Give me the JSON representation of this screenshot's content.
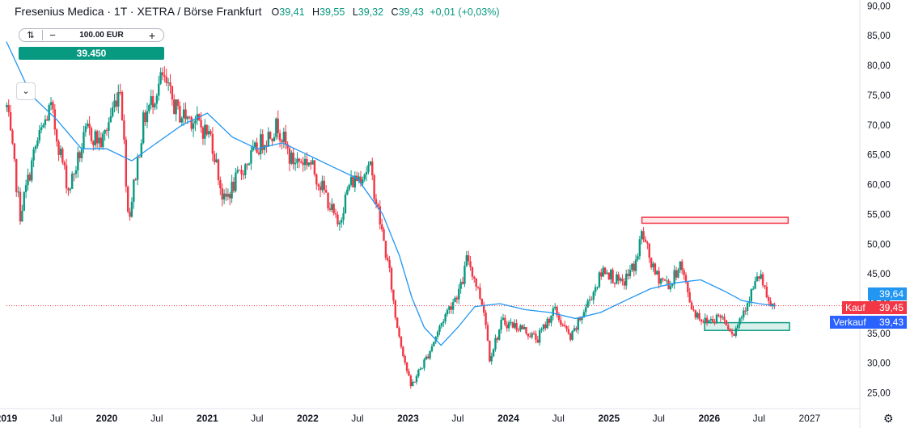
{
  "header": {
    "title": "Fresenius Medica · 1T · XETRA / Börse Frankfurt",
    "o_label": "O",
    "o_value": "39,41",
    "h_label": "H",
    "h_value": "39,55",
    "l_label": "L",
    "l_value": "39,32",
    "c_label": "C",
    "c_value": "39,43",
    "change": "+0,01 (+0,03%)"
  },
  "trade": {
    "swap_icon": "swap-icon",
    "minus": "−",
    "quantity": "100.00 EUR",
    "plus": "+",
    "price": "39.450"
  },
  "collapse_icon": "chevron-down-icon",
  "price_labels": {
    "last": "39,64",
    "kauf_label": "Kauf",
    "kauf_value": "39,45",
    "verkauf_label": "Verkauf",
    "verkauf_value": "39,43"
  },
  "colors": {
    "up": "#089981",
    "down": "#f23645",
    "ma": "#2196f3",
    "kauf": "#f23645",
    "verkauf": "#2962ff",
    "last": "#2196f3",
    "resistance": "#f23645",
    "support": "#089981"
  },
  "chart_data": {
    "type": "candlestick",
    "x_axis_labels": [
      "2019",
      "Jul",
      "2020",
      "Jul",
      "2021",
      "Jul",
      "2022",
      "Jul",
      "2023",
      "Jul",
      "2024",
      "Jul",
      "2025",
      "Jul",
      "2026",
      "Jul",
      "2027"
    ],
    "y_ticks": [
      "25,00",
      "30,00",
      "35,00",
      "40,00",
      "45,00",
      "50,00",
      "55,00",
      "60,00",
      "65,00",
      "70,00",
      "75,00",
      "80,00",
      "85,00",
      "90,00"
    ],
    "ylim": [
      22.5,
      91
    ],
    "xlim": [
      "2019-01-01",
      "2027-06-30"
    ],
    "price_path": [
      [
        "2019-01-02",
        73
      ],
      [
        "2019-02-20",
        55
      ],
      [
        "2019-04-15",
        66
      ],
      [
        "2019-06-10",
        73
      ],
      [
        "2019-08-15",
        59
      ],
      [
        "2019-10-20",
        69
      ],
      [
        "2019-12-15",
        67
      ],
      [
        "2020-02-20",
        77
      ],
      [
        "2020-03-20",
        54
      ],
      [
        "2020-05-15",
        71
      ],
      [
        "2020-07-20",
        78
      ],
      [
        "2020-09-15",
        72
      ],
      [
        "2020-11-10",
        71
      ],
      [
        "2021-01-15",
        68
      ],
      [
        "2021-03-01",
        57
      ],
      [
        "2021-05-15",
        63
      ],
      [
        "2021-07-15",
        67
      ],
      [
        "2021-09-15",
        70
      ],
      [
        "2021-11-01",
        64
      ],
      [
        "2022-01-05",
        64
      ],
      [
        "2022-03-10",
        58
      ],
      [
        "2022-04-20",
        53
      ],
      [
        "2022-06-01",
        60
      ],
      [
        "2022-08-15",
        63
      ],
      [
        "2022-10-10",
        49
      ],
      [
        "2022-10-30",
        44
      ],
      [
        "2022-11-15",
        38
      ],
      [
        "2023-01-10",
        26
      ],
      [
        "2023-03-10",
        31
      ],
      [
        "2023-05-15",
        38
      ],
      [
        "2023-07-15",
        43
      ],
      [
        "2023-08-05",
        48
      ],
      [
        "2023-10-05",
        39
      ],
      [
        "2023-10-25",
        31
      ],
      [
        "2023-12-10",
        37
      ],
      [
        "2024-02-15",
        36
      ],
      [
        "2024-04-15",
        34
      ],
      [
        "2024-06-15",
        39
      ],
      [
        "2024-08-15",
        34
      ],
      [
        "2024-10-15",
        40
      ],
      [
        "2024-12-15",
        46
      ],
      [
        "2025-02-15",
        43
      ],
      [
        "2025-04-10",
        47
      ],
      [
        "2025-05-01",
        52
      ],
      [
        "2025-06-15",
        45
      ],
      [
        "2025-08-15",
        43
      ],
      [
        "2025-09-15",
        47
      ],
      [
        "2025-11-01",
        39
      ],
      [
        "2025-12-15",
        37
      ],
      [
        "2026-02-15",
        38
      ],
      [
        "2026-04-01",
        35
      ],
      [
        "2026-05-15",
        40
      ],
      [
        "2026-07-05",
        45
      ],
      [
        "2026-08-01",
        40
      ],
      [
        "2026-08-30",
        39.43
      ]
    ],
    "moving_average": [
      [
        "2019-01-01",
        84
      ],
      [
        "2019-04-01",
        75
      ],
      [
        "2019-07-01",
        71
      ],
      [
        "2019-10-01",
        66
      ],
      [
        "2020-01-01",
        66
      ],
      [
        "2020-04-01",
        64
      ],
      [
        "2020-07-01",
        67
      ],
      [
        "2020-10-01",
        70
      ],
      [
        "2021-01-01",
        72
      ],
      [
        "2021-04-01",
        68
      ],
      [
        "2021-07-01",
        66
      ],
      [
        "2021-10-01",
        67
      ],
      [
        "2022-01-01",
        65
      ],
      [
        "2022-04-01",
        63
      ],
      [
        "2022-07-01",
        61
      ],
      [
        "2022-10-01",
        55
      ],
      [
        "2022-12-01",
        48
      ],
      [
        "2023-01-15",
        41
      ],
      [
        "2023-03-01",
        36
      ],
      [
        "2023-05-01",
        33
      ],
      [
        "2023-07-01",
        36
      ],
      [
        "2023-09-01",
        39.5
      ],
      [
        "2023-12-01",
        40
      ],
      [
        "2024-03-01",
        39
      ],
      [
        "2024-06-01",
        38.5
      ],
      [
        "2024-09-01",
        37.5
      ],
      [
        "2024-12-01",
        38.5
      ],
      [
        "2025-03-01",
        40.5
      ],
      [
        "2025-06-01",
        42.5
      ],
      [
        "2025-09-01",
        43.5
      ],
      [
        "2025-12-01",
        44
      ],
      [
        "2026-03-01",
        42
      ],
      [
        "2026-05-01",
        40.5
      ],
      [
        "2026-07-01",
        40
      ],
      [
        "2026-08-30",
        39.6
      ]
    ],
    "resistance_zone": {
      "x": [
        "2025-05-01",
        "2026-10-15"
      ],
      "y": [
        53.5,
        54.5
      ]
    },
    "support_zone": {
      "x": [
        "2025-12-15",
        "2026-10-20"
      ],
      "y": [
        35.5,
        36.8
      ]
    },
    "last_price_line": 39.64
  }
}
